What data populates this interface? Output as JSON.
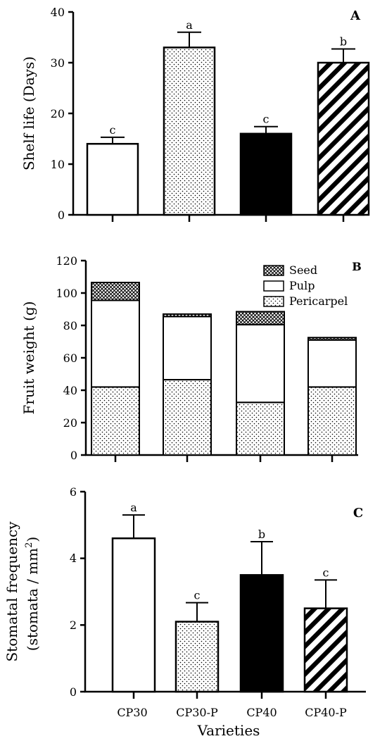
{
  "chart_data": [
    {
      "panel": "A",
      "type": "bar",
      "ylabel": "Shelf life (Days)",
      "ylim": [
        0,
        40
      ],
      "yticks": [
        "0",
        "10",
        "20",
        "30",
        "40"
      ],
      "series": [
        {
          "values": [
            14,
            33,
            16,
            30
          ],
          "errors": [
            1.3,
            3,
            1.4,
            2.7
          ],
          "letters": [
            "c",
            "a",
            "c",
            "b"
          ],
          "fills": [
            "white",
            "dots",
            "black",
            "stripes"
          ]
        }
      ],
      "grid": false
    },
    {
      "panel": "B",
      "type": "bar",
      "stacked": true,
      "ylabel": "Fruit weight (g)",
      "ylim": [
        0,
        120
      ],
      "yticks": [
        "0",
        "20",
        "40",
        "60",
        "80",
        "100",
        "120"
      ],
      "series": [
        {
          "name": "Pericarpel",
          "fill": "dots",
          "values": [
            42,
            46.5,
            32.5,
            42
          ]
        },
        {
          "name": "Pulp",
          "fill": "white",
          "values": [
            53.5,
            39,
            48,
            29
          ]
        },
        {
          "name": "Seed",
          "fill": "checker",
          "values": [
            11,
            1.5,
            8,
            1.5
          ]
        }
      ],
      "legend": "top-right",
      "grid": false
    },
    {
      "panel": "C",
      "type": "bar",
      "ylabel_lines": [
        "Stomatal frequency",
        "(stomata / mm",
        "2",
        ")"
      ],
      "xlabel": "Varieties",
      "categories": [
        "CP30",
        "CP30-P",
        "CP40",
        "CP40-P"
      ],
      "ylim": [
        0,
        6
      ],
      "yticks": [
        "0",
        "2",
        "4",
        "6"
      ],
      "series": [
        {
          "values": [
            4.6,
            2.1,
            3.5,
            2.5
          ],
          "errors": [
            0.7,
            0.57,
            1.0,
            0.85
          ],
          "letters": [
            "a",
            "c",
            "b",
            "c"
          ],
          "fills": [
            "white",
            "dots",
            "black",
            "stripes"
          ]
        }
      ],
      "grid": false
    }
  ]
}
